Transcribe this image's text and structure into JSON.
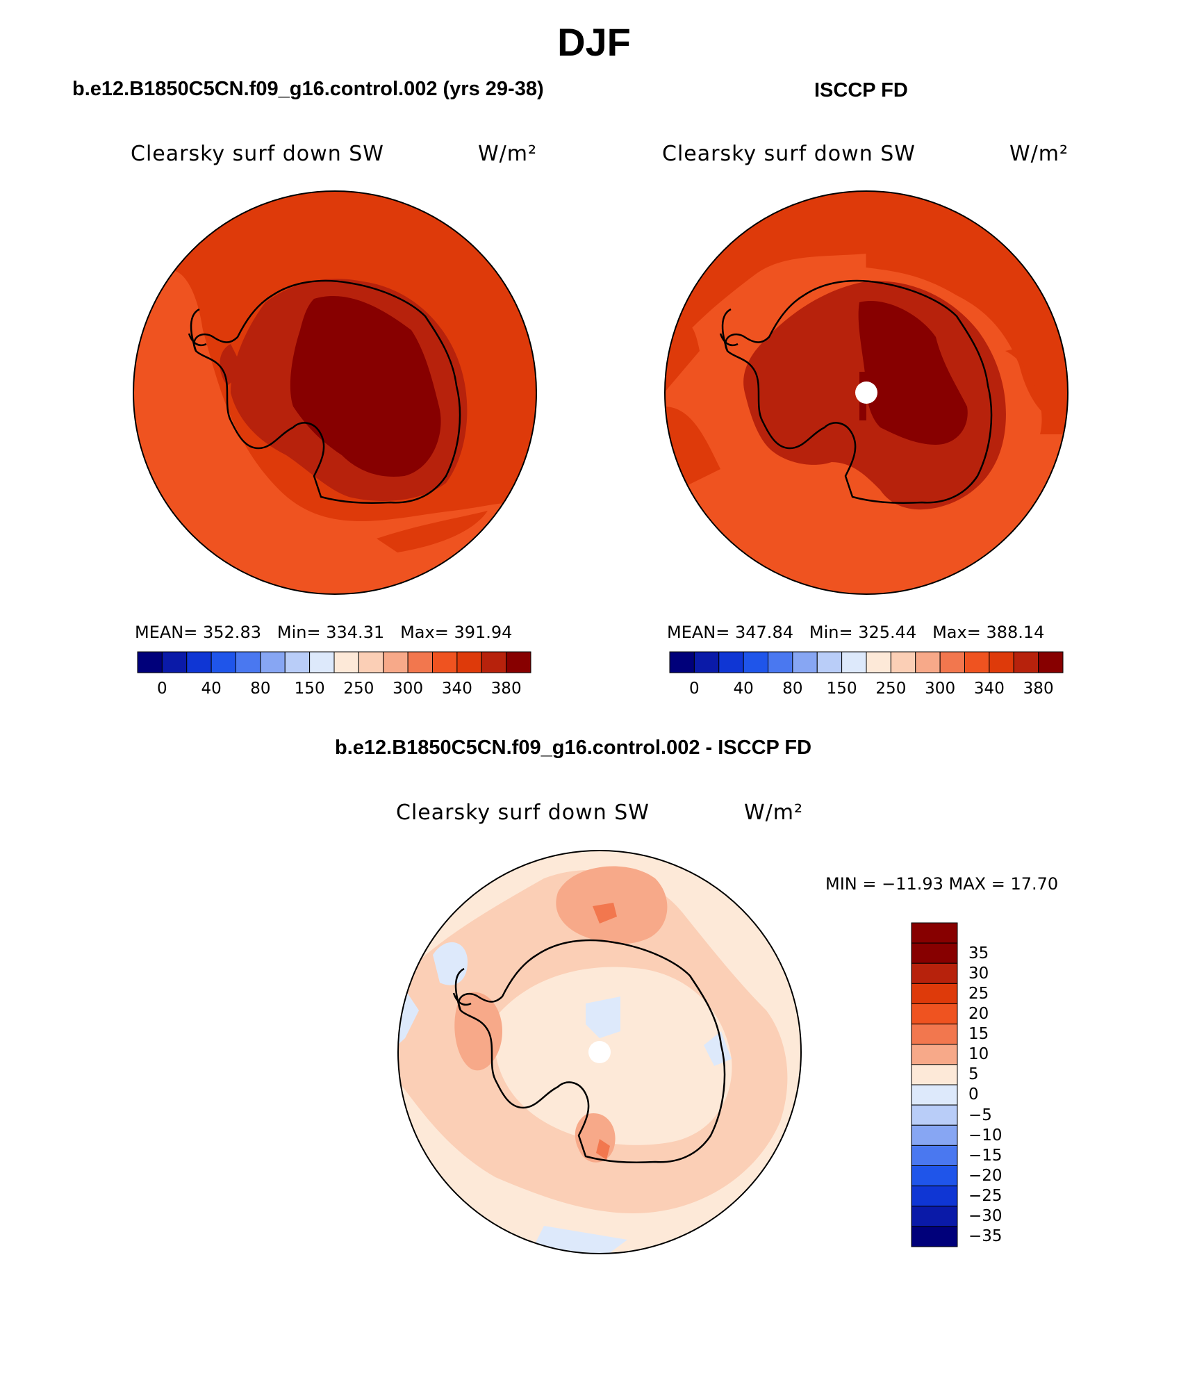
{
  "page_title": "DJF",
  "panels": {
    "model": {
      "title": "b.e12.B1850C5CN.f09_g16.control.002 (yrs 29-38)",
      "variable": "Clearsky surf down SW",
      "units": "W/m²",
      "mean_label": "MEAN=",
      "mean": "352.83",
      "min_label": "Min=",
      "min": "334.31",
      "max_label": "Max=",
      "max": "391.94"
    },
    "obs": {
      "title": "ISCCP FD",
      "variable": "Clearsky surf down SW",
      "units": "W/m²",
      "mean_label": "MEAN=",
      "mean": "347.84",
      "min_label": "Min=",
      "min": "325.44",
      "max_label": "Max=",
      "max": "388.14"
    },
    "diff": {
      "title": "b.e12.B1850C5CN.f09_g16.control.002 - ISCCP FD",
      "variable": "Clearsky surf down SW",
      "units": "W/m²",
      "minmax_text": "MIN = −11.93 MAX =   17.70"
    }
  },
  "colorbar_abs": {
    "colors": [
      "#00007a",
      "#0a1aa8",
      "#0f36d4",
      "#1f55ea",
      "#4a78f0",
      "#87a6f3",
      "#b9cdf8",
      "#dde9fb",
      "#fde9d8",
      "#fbcfb6",
      "#f7a989",
      "#f2774e",
      "#ef5320",
      "#de3a0a",
      "#b7220c",
      "#870000"
    ],
    "tick_labels": [
      "0",
      "40",
      "80",
      "150",
      "250",
      "300",
      "340",
      "380"
    ]
  },
  "colorbar_diff": {
    "colors": [
      "#870000",
      "#b7220c",
      "#de3a0a",
      "#ef5320",
      "#f2774e",
      "#f7a989",
      "#fde9d8",
      "#dde9fb",
      "#b9cdf8",
      "#87a6f3",
      "#4a78f0",
      "#1f55ea",
      "#0f36d4",
      "#0a1aa8",
      "#00007a"
    ],
    "tick_labels": [
      "35",
      "30",
      "25",
      "20",
      "15",
      "10",
      "5",
      "0",
      "−5",
      "−10",
      "−15",
      "−20",
      "−25",
      "−30",
      "−35"
    ]
  }
}
